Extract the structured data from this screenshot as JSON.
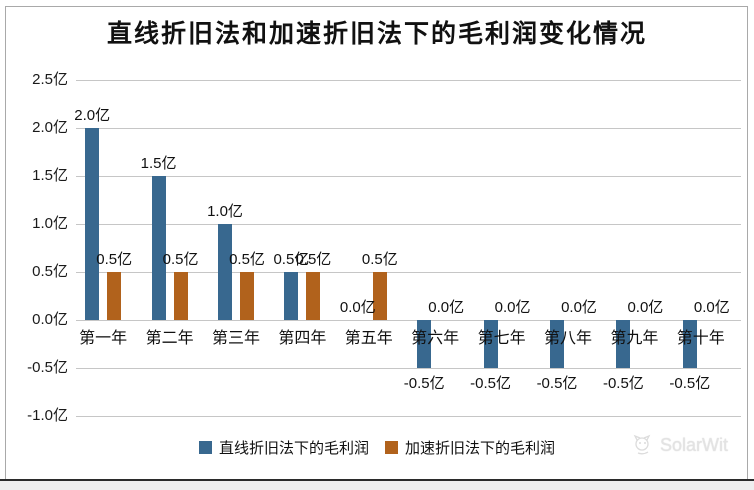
{
  "chart_data": {
    "type": "bar",
    "title": "直线折旧法和加速折旧法下的毛利润变化情况",
    "categories": [
      "第一年",
      "第二年",
      "第三年",
      "第四年",
      "第五年",
      "第六年",
      "第七年",
      "第八年",
      "第九年",
      "第十年"
    ],
    "series": [
      {
        "name": "直线折旧法下的毛利润",
        "color": "#38688f",
        "values": [
          2.0,
          1.5,
          1.0,
          0.5,
          0.0,
          -0.5,
          -0.5,
          -0.5,
          -0.5,
          -0.5
        ]
      },
      {
        "name": "加速折旧法下的毛利润",
        "color": "#b1621c",
        "values": [
          0.5,
          0.5,
          0.5,
          0.5,
          0.5,
          0.0,
          0.0,
          0.0,
          0.0,
          0.0
        ]
      }
    ],
    "unit": "亿",
    "y_ticks": [
      "2.5亿",
      "2.0亿",
      "1.5亿",
      "1.0亿",
      "0.5亿",
      "0.0亿",
      "-0.5亿",
      "-1.0亿"
    ],
    "y_tick_values": [
      2.5,
      2.0,
      1.5,
      1.0,
      0.5,
      0.0,
      -0.5,
      -1.0
    ],
    "ylim": [
      -1.0,
      2.5
    ],
    "grid": true,
    "data_labels": true,
    "legend_position": "bottom"
  },
  "colors": {
    "straight_line": "#38688f",
    "accelerated": "#b1621c",
    "gridline": "#c6c6c6",
    "title_text": "#111111"
  },
  "watermark": {
    "text": "SolarWit"
  }
}
